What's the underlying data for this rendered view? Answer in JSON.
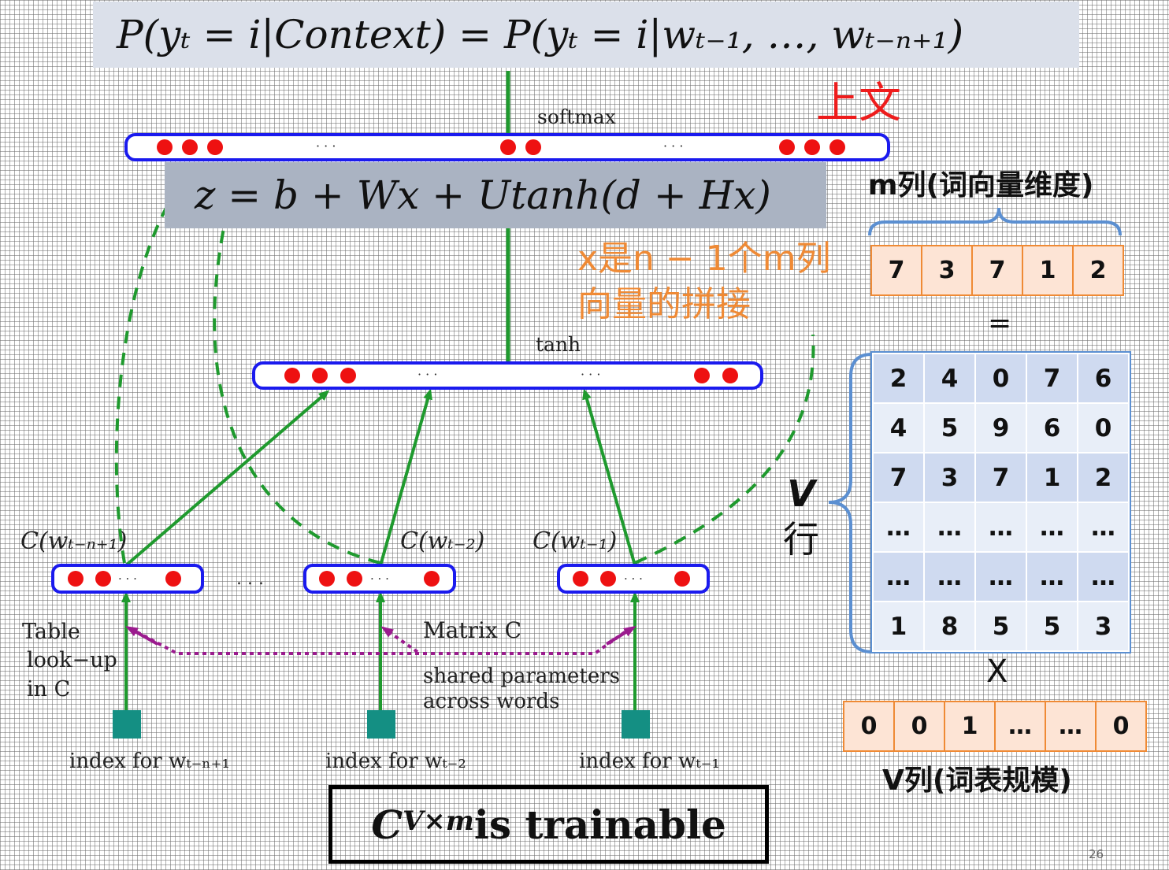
{
  "formulas": {
    "top": "P(yₜ = i|Context) = P(yₜ = i|wₜ₋₁, …, wₜ₋ₙ₊₁)",
    "z": "z = b + Wx + Utanh(d + Hx)"
  },
  "annotations": {
    "context_cn": "上文",
    "x_note_line1": "x是n − 1个m列",
    "x_note_line2": "向量的拼接"
  },
  "network": {
    "softmax_label": "softmax",
    "tanh_label": "tanh",
    "ellipsis": "· · ·",
    "embed_labels": [
      "C(wₜ₋ₙ₊₁)",
      "C(wₜ₋₂)",
      "C(wₜ₋₁)"
    ],
    "between_ellipsis": ". . .",
    "table_lookup": [
      "Table",
      "look−up",
      "in C"
    ],
    "matrix_c": "Matrix C",
    "shared_params": [
      "shared parameters",
      "across words"
    ],
    "index_labels": [
      "index for wₜ₋ₙ₊₁",
      "index for wₜ₋₂",
      "index for wₜ₋₁"
    ]
  },
  "matrix_panel": {
    "m_col_label": "m列(词向量维度)",
    "v_row_letter": "V",
    "v_row_char": "行",
    "v_col_label": "V列(词表规模)",
    "equals": "=",
    "times": "X",
    "row_vector": [
      "7",
      "3",
      "7",
      "1",
      "2"
    ],
    "matrix_rows": [
      [
        "2",
        "4",
        "0",
        "7",
        "6"
      ],
      [
        "4",
        "5",
        "9",
        "6",
        "0"
      ],
      [
        "7",
        "3",
        "7",
        "1",
        "2"
      ],
      [
        "…",
        "…",
        "…",
        "…",
        "…"
      ],
      [
        "…",
        "…",
        "…",
        "…",
        "…"
      ],
      [
        "1",
        "8",
        "5",
        "5",
        "3"
      ]
    ],
    "onehot": [
      "0",
      "0",
      "1",
      "…",
      "…",
      "0"
    ]
  },
  "trainable": {
    "prefix": "C",
    "superscript": "V×m",
    "suffix": "is trainable"
  },
  "page_number": "26",
  "colors": {
    "network_line": "#1f9a2e",
    "node_dot": "#ee1111",
    "layer_border": "#1a1aee",
    "dotted_purple": "#9b1b8e",
    "index_square": "#148f83",
    "orange": "#ef8a35",
    "blue_matrix": "#5b8fd1"
  }
}
